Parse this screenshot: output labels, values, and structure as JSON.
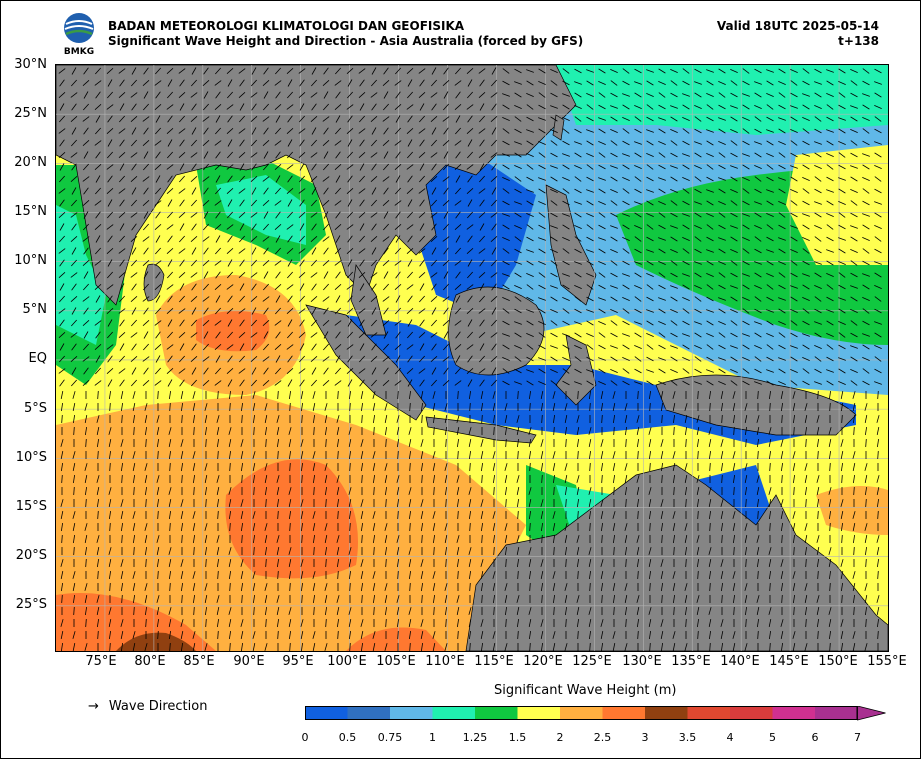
{
  "header": {
    "agency": "BADAN METEOROLOGI KLIMATOLOGI DAN GEOFISIKA",
    "subtitle": "Significant Wave Height and Direction - Asia Australia (forced by GFS)",
    "valid": "Valid 18UTC 2025-05-14",
    "lead": "t+138",
    "logo_text": "BMKG"
  },
  "axes": {
    "lat_labels": [
      "30°N",
      "25°N",
      "20°N",
      "15°N",
      "10°N",
      "5°N",
      "EQ",
      "5°S",
      "10°S",
      "15°S",
      "20°S",
      "25°S"
    ],
    "lon_labels": [
      "75°E",
      "80°E",
      "85°E",
      "90°E",
      "95°E",
      "100°E",
      "105°E",
      "110°E",
      "115°E",
      "120°E",
      "125°E",
      "130°E",
      "135°E",
      "140°E",
      "145°E",
      "150°E",
      "155°E"
    ]
  },
  "legend": {
    "direction_label": "Wave Direction",
    "arrow_glyph": "→",
    "colorbar_title": "Significant Wave Height (m)",
    "levels": [
      "0",
      "0.5",
      "0.75",
      "1",
      "1.25",
      "1.5",
      "2",
      "2.5",
      "3",
      "3.5",
      "4",
      "5",
      "6",
      "7"
    ],
    "colors": [
      "#1060e0",
      "#3070c0",
      "#60b8e8",
      "#20f0b0",
      "#10c840",
      "#ffff50",
      "#ffb040",
      "#ff7830",
      "#904010",
      "#e04830",
      "#d83c3c",
      "#d03090",
      "#a83090"
    ]
  },
  "map_colors": {
    "land": "#858585",
    "grid": "#b4b4b4"
  }
}
